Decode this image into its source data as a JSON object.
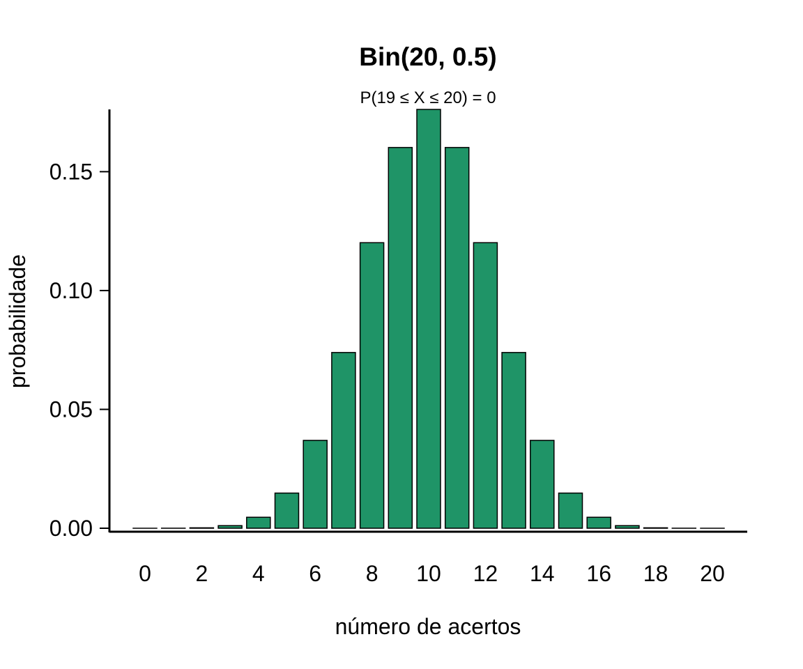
{
  "chart_data": {
    "type": "bar",
    "title": "Bin(20, 0.5)",
    "subtitle": "P(19 ≤ X ≤ 20) = 0",
    "xlabel": "número de acertos",
    "ylabel": "probabilidade",
    "categories": [
      0,
      1,
      2,
      3,
      4,
      5,
      6,
      7,
      8,
      9,
      10,
      11,
      12,
      13,
      14,
      15,
      16,
      17,
      18,
      19,
      20
    ],
    "values": [
      9.5e-07,
      1.91e-05,
      0.000181,
      0.00109,
      0.00462,
      0.01479,
      0.03696,
      0.07393,
      0.12013,
      0.16018,
      0.1762,
      0.16018,
      0.12013,
      0.07393,
      0.03696,
      0.01479,
      0.00462,
      0.00109,
      0.000181,
      1.91e-05,
      9.5e-07
    ],
    "x_tick_labels": [
      "0",
      "2",
      "4",
      "6",
      "8",
      "10",
      "12",
      "14",
      "16",
      "18",
      "20"
    ],
    "x_tick_values": [
      0,
      2,
      4,
      6,
      8,
      10,
      12,
      14,
      16,
      18,
      20
    ],
    "y_tick_labels": [
      "0.00",
      "0.05",
      "0.10",
      "0.15"
    ],
    "y_tick_values": [
      0,
      0.05,
      0.1,
      0.15
    ],
    "ylim": [
      0,
      0.1762
    ],
    "grid": false,
    "legend": "none",
    "bar_color": "#1f9467",
    "bar_edge_color": "#000000"
  }
}
